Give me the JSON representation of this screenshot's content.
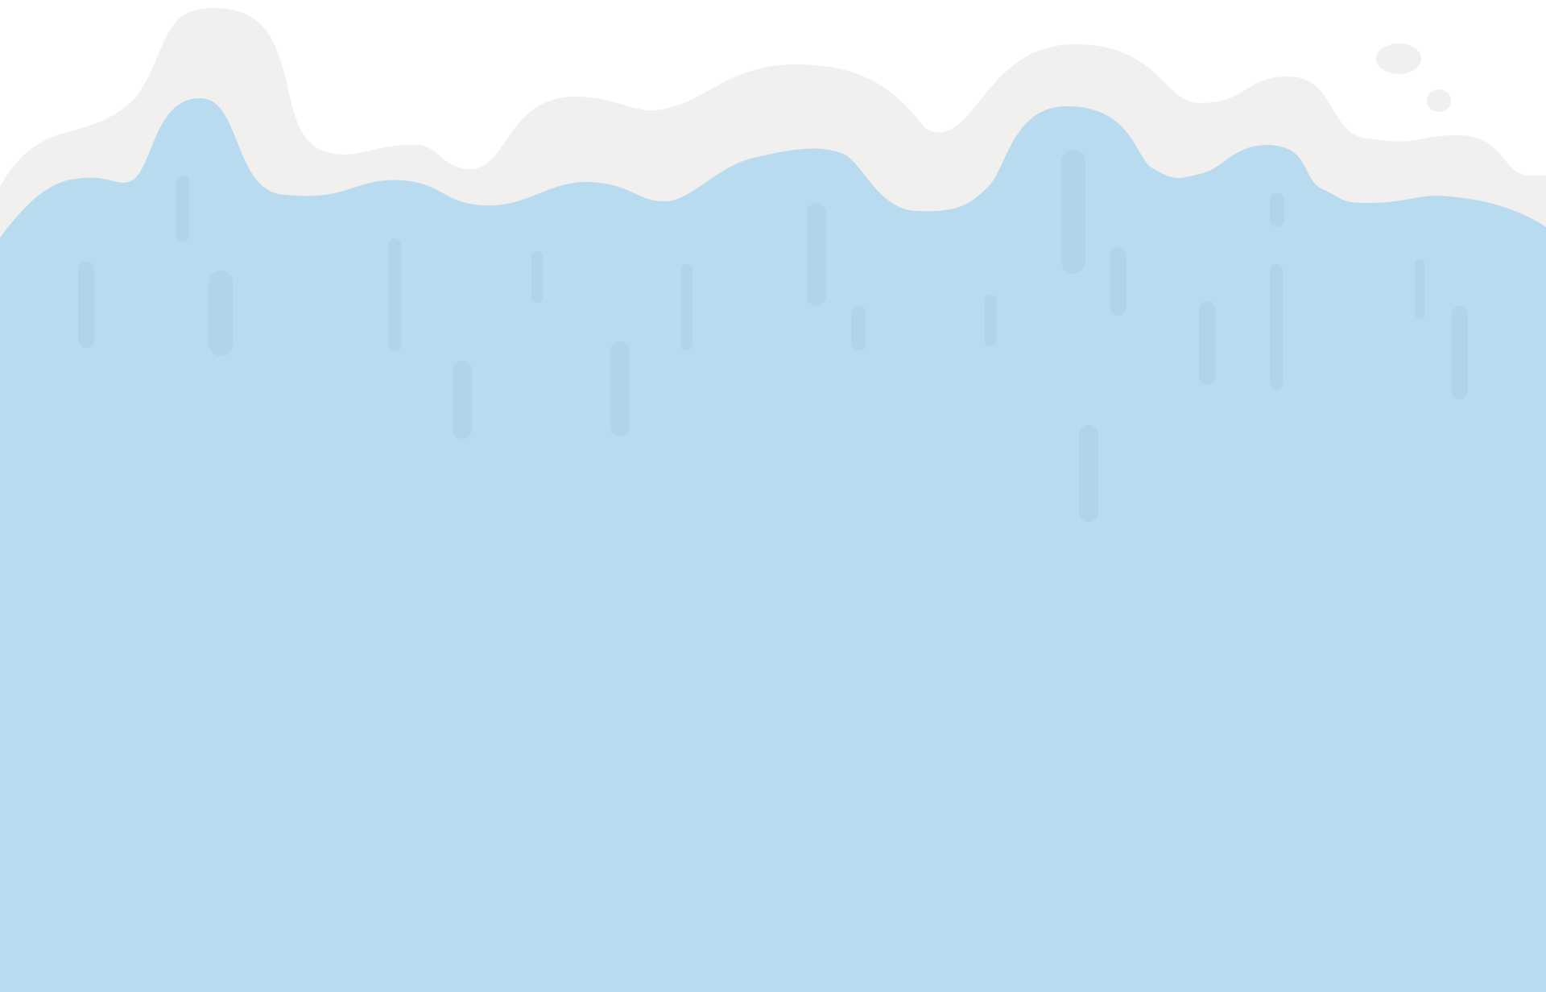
{
  "colors": {
    "background": "#ffffff",
    "snow": "#f1f0ef",
    "water": "#b9dbf0",
    "drip": "#b2d4e8"
  },
  "illustration": {
    "layers": [
      "snow-wave",
      "water-wave",
      "drip-marks",
      "snow-pebbles"
    ]
  }
}
